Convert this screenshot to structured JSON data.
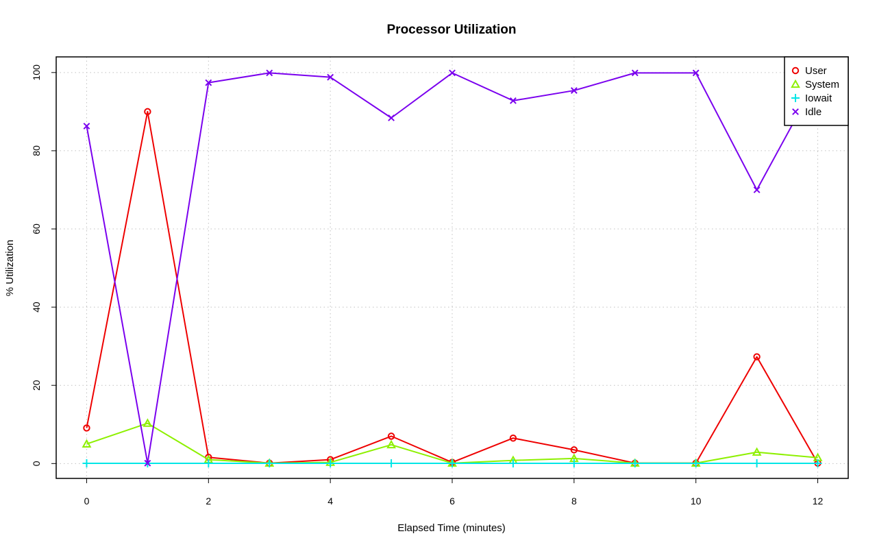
{
  "chart_data": {
    "type": "line",
    "title": "Processor Utilization",
    "xlabel": "Elapsed Time (minutes)",
    "ylabel": "% Utilization",
    "x": [
      0,
      1,
      2,
      3,
      4,
      5,
      6,
      7,
      8,
      9,
      10,
      11,
      12
    ],
    "xlim": [
      -0.5,
      12.5
    ],
    "ylim": [
      -3.8,
      104
    ],
    "xticks": [
      0,
      2,
      4,
      6,
      8,
      10,
      12
    ],
    "yticks": [
      0,
      20,
      40,
      60,
      80,
      100
    ],
    "grid": true,
    "legend_position": "top-right",
    "series": [
      {
        "name": "User",
        "color": "#ee0000",
        "marker": "circle",
        "values": [
          9.1,
          90,
          1.6,
          0.1,
          1.0,
          7.0,
          0.3,
          6.5,
          3.5,
          0.1,
          0.1,
          27.3,
          0.1
        ]
      },
      {
        "name": "System",
        "color": "#8df000",
        "marker": "triangle",
        "values": [
          5.0,
          10.3,
          1.0,
          0.1,
          0.3,
          4.8,
          0.1,
          0.8,
          1.3,
          0.1,
          0.1,
          2.9,
          1.5
        ]
      },
      {
        "name": "Iowait",
        "color": "#00e6e6",
        "marker": "plus",
        "values": [
          0.05,
          0.05,
          0.05,
          0.05,
          0.05,
          0.05,
          0.05,
          0.05,
          0.05,
          0.05,
          0.05,
          0.05,
          0.05
        ]
      },
      {
        "name": "Idle",
        "color": "#7a00ee",
        "marker": "cross",
        "values": [
          86.3,
          0.1,
          97.4,
          99.9,
          98.8,
          88.4,
          99.9,
          92.8,
          95.4,
          99.9,
          99.9,
          70.0,
          98.6
        ]
      }
    ]
  }
}
